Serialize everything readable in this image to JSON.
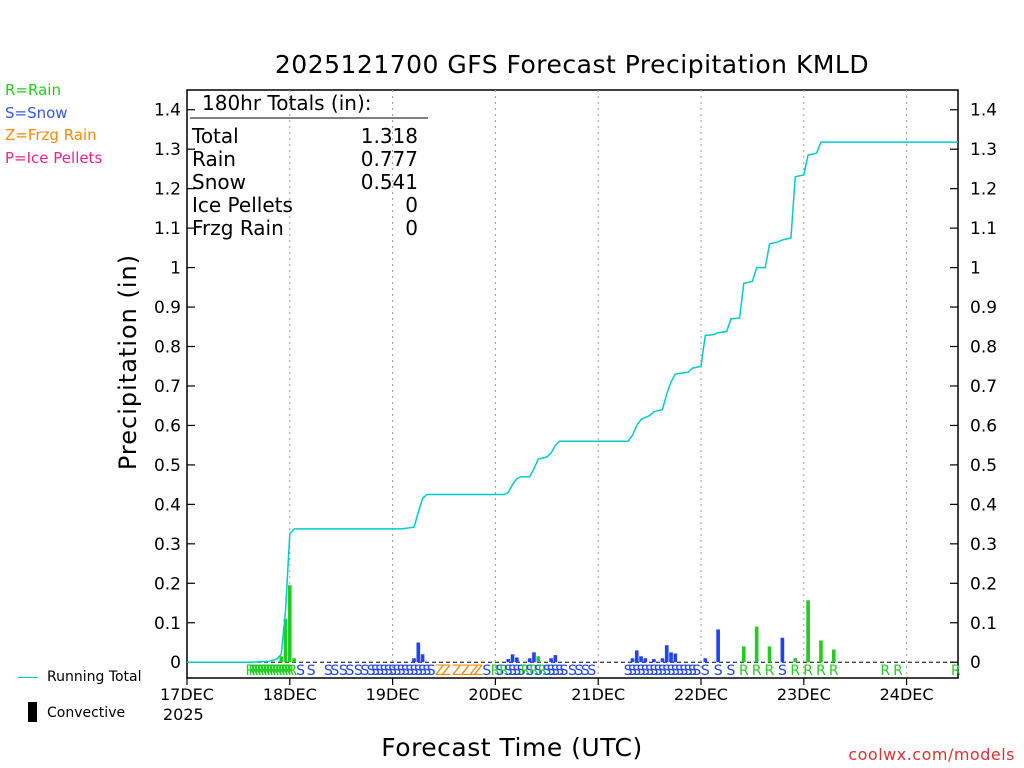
{
  "header": {
    "title": "2025121700 GFS Forecast Precipitation KMLD"
  },
  "type_legend": [
    {
      "code": "R=Rain",
      "color": "#22cc22"
    },
    {
      "code": "S=Snow",
      "color": "#3355ee"
    },
    {
      "code": "Z=Frzg Rain",
      "color": "#ff8800"
    },
    {
      "code": "P=Ice Pellets",
      "color": "#ee2288"
    }
  ],
  "totals": {
    "header": "180hr Totals (in):",
    "rows": [
      {
        "label": "Total",
        "value": "1.318"
      },
      {
        "label": "Rain",
        "value": "0.777"
      },
      {
        "label": "Snow",
        "value": "0.541"
      },
      {
        "label": "Ice Pellets",
        "value": "0"
      },
      {
        "label": "Frzg Rain",
        "value": "0"
      }
    ]
  },
  "axes": {
    "ylabel": "Precipitation (in)",
    "xlabel": "Forecast Time (UTC)",
    "year": "2025"
  },
  "bottom_legend": {
    "running_total": "Running Total",
    "convective": "Convective"
  },
  "credit": "coolwx.com/models",
  "colors": {
    "rain": "#22cc22",
    "snow": "#2244ee",
    "zr": "#ff8800",
    "pellets": "#ee2288",
    "running_total": "#00cccc"
  },
  "chart_data": {
    "type": "bar",
    "title": "2025121700 GFS Forecast Precipitation KMLD",
    "xlabel": "Forecast Time (UTC)",
    "ylabel": "Precipitation (in)",
    "x_unit": "forecast hour",
    "xlim": [
      0,
      180
    ],
    "ylim": [
      -0.04,
      1.45
    ],
    "yticks": [
      0,
      0.1,
      0.2,
      0.3,
      0.4,
      0.5,
      0.6,
      0.7,
      0.8,
      0.9,
      1,
      1.1,
      1.2,
      1.3,
      1.4
    ],
    "ytick_labels": [
      "0",
      "0.1",
      "0.2",
      "0.3",
      "0.4",
      "0.5",
      "0.6",
      "0.7",
      "0.8",
      "0.9",
      "1",
      "1.1",
      "1.2",
      "1.3",
      "1.4"
    ],
    "xticks": [
      {
        "hour": 0,
        "label": "17DEC"
      },
      {
        "hour": 24,
        "label": "18DEC"
      },
      {
        "hour": 48,
        "label": "19DEC"
      },
      {
        "hour": 72,
        "label": "20DEC"
      },
      {
        "hour": 96,
        "label": "21DEC"
      },
      {
        "hour": 120,
        "label": "22DEC"
      },
      {
        "hour": 144,
        "label": "23DEC"
      },
      {
        "hour": 168,
        "label": "24DEC"
      }
    ],
    "bars": [
      {
        "h": 23,
        "v": 0.11,
        "type": "rain"
      },
      {
        "h": 24,
        "v": 0.195,
        "type": "rain"
      },
      {
        "h": 25,
        "v": 0.01,
        "type": "rain"
      },
      {
        "h": 22,
        "v": 0.015,
        "type": "rain"
      },
      {
        "h": 53,
        "v": 0.01,
        "type": "snow"
      },
      {
        "h": 54,
        "v": 0.05,
        "type": "snow"
      },
      {
        "h": 55,
        "v": 0.02,
        "type": "snow"
      },
      {
        "h": 75,
        "v": 0.008,
        "type": "snow"
      },
      {
        "h": 76,
        "v": 0.02,
        "type": "snow"
      },
      {
        "h": 77,
        "v": 0.012,
        "type": "snow"
      },
      {
        "h": 80,
        "v": 0.01,
        "type": "snow"
      },
      {
        "h": 81,
        "v": 0.025,
        "type": "snow"
      },
      {
        "h": 82,
        "v": 0.015,
        "type": "rain"
      },
      {
        "h": 85,
        "v": 0.01,
        "type": "snow"
      },
      {
        "h": 86,
        "v": 0.018,
        "type": "snow"
      },
      {
        "h": 104,
        "v": 0.01,
        "type": "snow"
      },
      {
        "h": 105,
        "v": 0.03,
        "type": "snow"
      },
      {
        "h": 106,
        "v": 0.015,
        "type": "snow"
      },
      {
        "h": 107,
        "v": 0.01,
        "type": "snow"
      },
      {
        "h": 109,
        "v": 0.008,
        "type": "snow"
      },
      {
        "h": 111,
        "v": 0.01,
        "type": "snow"
      },
      {
        "h": 112,
        "v": 0.043,
        "type": "snow"
      },
      {
        "h": 113,
        "v": 0.025,
        "type": "snow"
      },
      {
        "h": 114,
        "v": 0.022,
        "type": "snow"
      },
      {
        "h": 121,
        "v": 0.01,
        "type": "snow"
      },
      {
        "h": 124,
        "v": 0.083,
        "type": "snow"
      },
      {
        "h": 130,
        "v": 0.04,
        "type": "rain"
      },
      {
        "h": 133,
        "v": 0.09,
        "type": "rain"
      },
      {
        "h": 136,
        "v": 0.04,
        "type": "rain"
      },
      {
        "h": 139,
        "v": 0.062,
        "type": "snow"
      },
      {
        "h": 142,
        "v": 0.01,
        "type": "rain"
      },
      {
        "h": 145,
        "v": 0.157,
        "type": "rain"
      },
      {
        "h": 148,
        "v": 0.055,
        "type": "rain"
      },
      {
        "h": 151,
        "v": 0.032,
        "type": "rain"
      }
    ],
    "running_total": [
      [
        0,
        0
      ],
      [
        15,
        0
      ],
      [
        19,
        0.002
      ],
      [
        21,
        0.008
      ],
      [
        22,
        0.02
      ],
      [
        23,
        0.13
      ],
      [
        24,
        0.325
      ],
      [
        25,
        0.338
      ],
      [
        50,
        0.338
      ],
      [
        53,
        0.342
      ],
      [
        54,
        0.38
      ],
      [
        55,
        0.415
      ],
      [
        56,
        0.425
      ],
      [
        74,
        0.425
      ],
      [
        75,
        0.43
      ],
      [
        76,
        0.45
      ],
      [
        77,
        0.465
      ],
      [
        78,
        0.47
      ],
      [
        80,
        0.47
      ],
      [
        81,
        0.49
      ],
      [
        82,
        0.515
      ],
      [
        84,
        0.52
      ],
      [
        85,
        0.53
      ],
      [
        86,
        0.55
      ],
      [
        87,
        0.56
      ],
      [
        103,
        0.56
      ],
      [
        104,
        0.575
      ],
      [
        105,
        0.6
      ],
      [
        106,
        0.615
      ],
      [
        108,
        0.625
      ],
      [
        109,
        0.635
      ],
      [
        111,
        0.64
      ],
      [
        112,
        0.68
      ],
      [
        113,
        0.71
      ],
      [
        114,
        0.73
      ],
      [
        117,
        0.735
      ],
      [
        118,
        0.745
      ],
      [
        120,
        0.75
      ],
      [
        121,
        0.828
      ],
      [
        123,
        0.83
      ],
      [
        124,
        0.835
      ],
      [
        126,
        0.838
      ],
      [
        127,
        0.87
      ],
      [
        129,
        0.872
      ],
      [
        130,
        0.96
      ],
      [
        132,
        0.965
      ],
      [
        133,
        1.0
      ],
      [
        135,
        1.0
      ],
      [
        136,
        1.06
      ],
      [
        138,
        1.065
      ],
      [
        139,
        1.07
      ],
      [
        141,
        1.075
      ],
      [
        142,
        1.23
      ],
      [
        144,
        1.235
      ],
      [
        145,
        1.285
      ],
      [
        147,
        1.29
      ],
      [
        148,
        1.318
      ],
      [
        180,
        1.318
      ]
    ],
    "precip_type_markers": [
      {
        "h": 14.8,
        "c": "R"
      },
      {
        "h": 15.5,
        "c": "R"
      },
      {
        "h": 16.2,
        "c": "R"
      },
      {
        "h": 16.9,
        "c": "R"
      },
      {
        "h": 17.6,
        "c": "R"
      },
      {
        "h": 18.3,
        "c": "R"
      },
      {
        "h": 19.0,
        "c": "R"
      },
      {
        "h": 19.7,
        "c": "R"
      },
      {
        "h": 20.4,
        "c": "R"
      },
      {
        "h": 21.1,
        "c": "R"
      },
      {
        "h": 21.8,
        "c": "R"
      },
      {
        "h": 22.5,
        "c": "R"
      },
      {
        "h": 23.2,
        "c": "R"
      },
      {
        "h": 23.9,
        "c": "R"
      },
      {
        "h": 24.6,
        "c": "R"
      },
      {
        "h": 26.5,
        "c": "S"
      },
      {
        "h": 29,
        "c": "S"
      },
      {
        "h": 33,
        "c": "S"
      },
      {
        "h": 34.5,
        "c": "S"
      },
      {
        "h": 36.5,
        "c": "S"
      },
      {
        "h": 38,
        "c": "S"
      },
      {
        "h": 40,
        "c": "S"
      },
      {
        "h": 41.5,
        "c": "S"
      },
      {
        "h": 43,
        "c": "S"
      },
      {
        "h": 44,
        "c": "S"
      },
      {
        "h": 45,
        "c": "S"
      },
      {
        "h": 46,
        "c": "S"
      },
      {
        "h": 47,
        "c": "S"
      },
      {
        "h": 48,
        "c": "S"
      },
      {
        "h": 49,
        "c": "S"
      },
      {
        "h": 50,
        "c": "S"
      },
      {
        "h": 51,
        "c": "S"
      },
      {
        "h": 52,
        "c": "S"
      },
      {
        "h": 53,
        "c": "S"
      },
      {
        "h": 54,
        "c": "S"
      },
      {
        "h": 55,
        "c": "S"
      },
      {
        "h": 56,
        "c": "S"
      },
      {
        "h": 57,
        "c": "S"
      },
      {
        "h": 59,
        "c": "Z"
      },
      {
        "h": 60.5,
        "c": "Z"
      },
      {
        "h": 63,
        "c": "Z"
      },
      {
        "h": 65,
        "c": "Z"
      },
      {
        "h": 67,
        "c": "Z"
      },
      {
        "h": 68,
        "c": "Z"
      },
      {
        "h": 70,
        "c": "S"
      },
      {
        "h": 72,
        "c": "R"
      },
      {
        "h": 73,
        "c": "S"
      },
      {
        "h": 74,
        "c": "R"
      },
      {
        "h": 75,
        "c": "S"
      },
      {
        "h": 76,
        "c": "S"
      },
      {
        "h": 77,
        "c": "S"
      },
      {
        "h": 78,
        "c": "S"
      },
      {
        "h": 79,
        "c": "R"
      },
      {
        "h": 80,
        "c": "S"
      },
      {
        "h": 81,
        "c": "R"
      },
      {
        "h": 82,
        "c": "S"
      },
      {
        "h": 83,
        "c": "R"
      },
      {
        "h": 84,
        "c": "S"
      },
      {
        "h": 85,
        "c": "S"
      },
      {
        "h": 86,
        "c": "S"
      },
      {
        "h": 87,
        "c": "S"
      },
      {
        "h": 88,
        "c": "S"
      },
      {
        "h": 90,
        "c": "S"
      },
      {
        "h": 91.5,
        "c": "S"
      },
      {
        "h": 93,
        "c": "S"
      },
      {
        "h": 94.5,
        "c": "S"
      },
      {
        "h": 103,
        "c": "S"
      },
      {
        "h": 104,
        "c": "S"
      },
      {
        "h": 105,
        "c": "S"
      },
      {
        "h": 106,
        "c": "S"
      },
      {
        "h": 107,
        "c": "S"
      },
      {
        "h": 108,
        "c": "S"
      },
      {
        "h": 109,
        "c": "S"
      },
      {
        "h": 110,
        "c": "S"
      },
      {
        "h": 111,
        "c": "S"
      },
      {
        "h": 112,
        "c": "S"
      },
      {
        "h": 113,
        "c": "S"
      },
      {
        "h": 114,
        "c": "S"
      },
      {
        "h": 115,
        "c": "S"
      },
      {
        "h": 116,
        "c": "S"
      },
      {
        "h": 117,
        "c": "S"
      },
      {
        "h": 118,
        "c": "S"
      },
      {
        "h": 119,
        "c": "S"
      },
      {
        "h": 121,
        "c": "S"
      },
      {
        "h": 124,
        "c": "S"
      },
      {
        "h": 127,
        "c": "S"
      },
      {
        "h": 130,
        "c": "R"
      },
      {
        "h": 133,
        "c": "R"
      },
      {
        "h": 136,
        "c": "R"
      },
      {
        "h": 139,
        "c": "S"
      },
      {
        "h": 142,
        "c": "R"
      },
      {
        "h": 145,
        "c": "R"
      },
      {
        "h": 148,
        "c": "R"
      },
      {
        "h": 151,
        "c": "R"
      },
      {
        "h": 163,
        "c": "R"
      },
      {
        "h": 166,
        "c": "R"
      },
      {
        "h": 179.5,
        "c": "R"
      }
    ]
  }
}
